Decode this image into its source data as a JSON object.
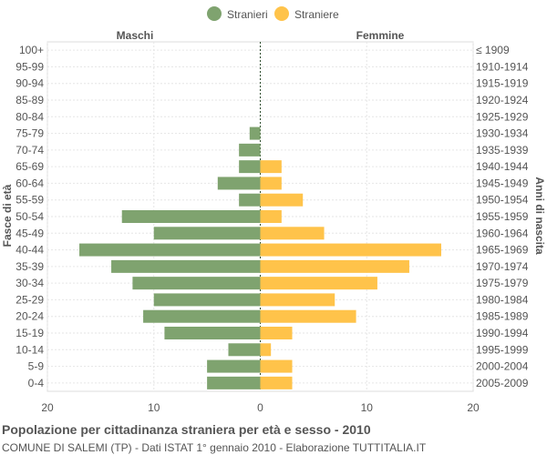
{
  "chart_data": {
    "type": "bar",
    "title": "Popolazione per cittadinanza straniera per età e sesso - 2010",
    "subtitle": "COMUNE DI SALEMI (TP) - Dati ISTAT 1° gennaio 2010 - Elaborazione TUTTITALIA.IT",
    "ylabel_left": "Fasce di età",
    "ylabel_right": "Anni di nascita",
    "left_header": "Maschi",
    "right_header": "Femmine",
    "legend_position": "top-center",
    "grid": true,
    "xlim": [
      -20,
      20
    ],
    "x_ticks": [
      {
        "value": -20,
        "label": "20"
      },
      {
        "value": -10,
        "label": "10"
      },
      {
        "value": 0,
        "label": "0"
      },
      {
        "value": 10,
        "label": "10"
      },
      {
        "value": 20,
        "label": "20"
      }
    ],
    "age_groups": [
      "100+",
      "95-99",
      "90-94",
      "85-89",
      "80-84",
      "75-79",
      "70-74",
      "65-69",
      "60-64",
      "55-59",
      "50-54",
      "45-49",
      "40-44",
      "35-39",
      "30-34",
      "25-29",
      "20-24",
      "15-19",
      "10-14",
      "5-9",
      "0-4"
    ],
    "birth_years": [
      "≤ 1909",
      "1910-1914",
      "1915-1919",
      "1920-1924",
      "1925-1929",
      "1930-1934",
      "1935-1939",
      "1940-1944",
      "1945-1949",
      "1950-1954",
      "1955-1959",
      "1960-1964",
      "1965-1969",
      "1970-1974",
      "1975-1979",
      "1980-1984",
      "1985-1989",
      "1990-1994",
      "1995-1999",
      "2000-2004",
      "2005-2009"
    ],
    "series": [
      {
        "name": "Stranieri",
        "color": "#7fa36f",
        "side": "left",
        "values": [
          0,
          0,
          0,
          0,
          0,
          1,
          2,
          2,
          4,
          2,
          13,
          10,
          17,
          14,
          12,
          10,
          11,
          9,
          3,
          5,
          5
        ]
      },
      {
        "name": "Straniere",
        "color": "#ffc34a",
        "side": "right",
        "values": [
          0,
          0,
          0,
          0,
          0,
          0,
          0,
          2,
          2,
          4,
          2,
          6,
          17,
          14,
          11,
          7,
          9,
          3,
          1,
          3,
          3
        ]
      }
    ]
  }
}
